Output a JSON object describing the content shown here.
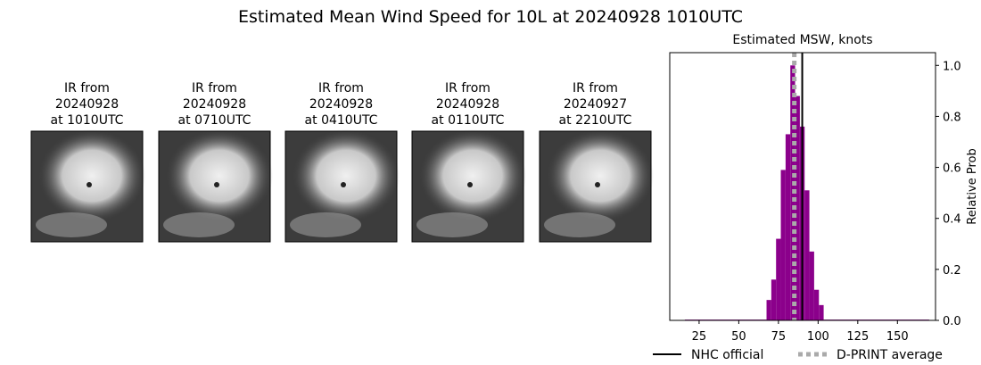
{
  "title": "Estimated Mean Wind Speed for 10L at 20240928 1010UTC",
  "images": [
    {
      "lines": [
        "IR from",
        "20240928",
        "at 1010UTC"
      ]
    },
    {
      "lines": [
        "IR from",
        "20240928",
        "at 0710UTC"
      ]
    },
    {
      "lines": [
        "IR from",
        "20240928",
        "at 0410UTC"
      ]
    },
    {
      "lines": [
        "IR from",
        "20240928",
        "at 0110UTC"
      ]
    },
    {
      "lines": [
        "IR from",
        "20240927",
        "at 2210UTC"
      ]
    }
  ],
  "chart_data": {
    "type": "histogram",
    "title": "Estimated MSW, knots",
    "y_label": "Relative Prob",
    "bins": [
      16,
      67.5,
      70.5,
      73.5,
      76.5,
      79.5,
      82.5,
      85.5,
      88.5,
      91.5,
      94.5,
      97.5,
      100.5,
      103.5,
      170
    ],
    "values": [
      0.003,
      0.08,
      0.16,
      0.32,
      0.59,
      0.73,
      1.0,
      0.88,
      0.76,
      0.51,
      0.27,
      0.12,
      0.06,
      0.003
    ],
    "color": "#8b008b",
    "xlim": [
      6.5,
      174
    ],
    "ylim": [
      0,
      1.05
    ],
    "xticks": [
      25,
      50,
      75,
      100,
      125,
      150
    ],
    "yticks": [
      {
        "value": 0,
        "label": "0.0"
      },
      0.2,
      0.4,
      0.6,
      0.8,
      {
        "value": 1,
        "label": "1.0"
      }
    ],
    "lines": [
      {
        "name": "NHC official",
        "x": 90,
        "color": "#000000",
        "dashed": false
      },
      {
        "name": "D-PRINT average",
        "x": 85,
        "color": "#aaaaaa",
        "dashed": true
      }
    ]
  }
}
